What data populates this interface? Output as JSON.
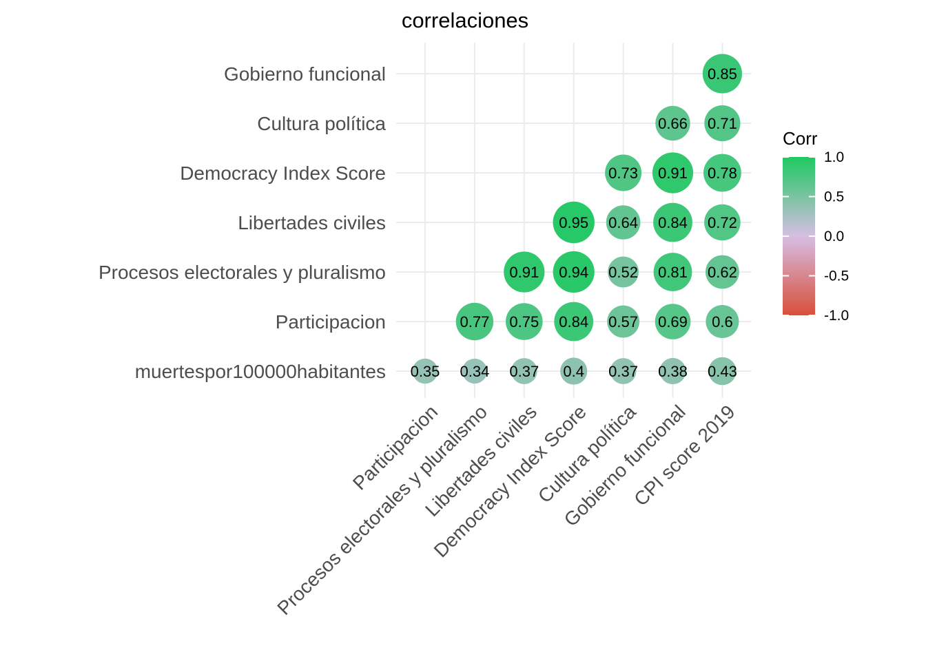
{
  "chart_data": {
    "type": "heatmap",
    "title": "correlaciones",
    "xlabel": "",
    "ylabel": "",
    "x_categories": [
      "Participacion",
      "Procesos electorales y pluralismo",
      "Libertades civiles",
      "Democracy Index Score",
      "Cultura política",
      "Gobierno funcional",
      "CPI score 2019"
    ],
    "y_categories": [
      "muertespor100000habitantes",
      "Participacion",
      "Procesos electorales y pluralismo",
      "Libertades civiles",
      "Democracy Index Score",
      "Cultura política",
      "Gobierno funcional"
    ],
    "cells": [
      {
        "x": "Participacion",
        "y": "muertespor100000habitantes",
        "value": 0.35,
        "label": "0.35"
      },
      {
        "x": "Procesos electorales y pluralismo",
        "y": "muertespor100000habitantes",
        "value": 0.34,
        "label": "0.34"
      },
      {
        "x": "Libertades civiles",
        "y": "muertespor100000habitantes",
        "value": 0.37,
        "label": "0.37"
      },
      {
        "x": "Democracy Index Score",
        "y": "muertespor100000habitantes",
        "value": 0.4,
        "label": "0.4"
      },
      {
        "x": "Cultura política",
        "y": "muertespor100000habitantes",
        "value": 0.37,
        "label": "0.37"
      },
      {
        "x": "Gobierno funcional",
        "y": "muertespor100000habitantes",
        "value": 0.38,
        "label": "0.38"
      },
      {
        "x": "CPI score 2019",
        "y": "muertespor100000habitantes",
        "value": 0.43,
        "label": "0.43"
      },
      {
        "x": "Procesos electorales y pluralismo",
        "y": "Participacion",
        "value": 0.77,
        "label": "0.77"
      },
      {
        "x": "Libertades civiles",
        "y": "Participacion",
        "value": 0.75,
        "label": "0.75"
      },
      {
        "x": "Democracy Index Score",
        "y": "Participacion",
        "value": 0.84,
        "label": "0.84"
      },
      {
        "x": "Cultura política",
        "y": "Participacion",
        "value": 0.57,
        "label": "0.57"
      },
      {
        "x": "Gobierno funcional",
        "y": "Participacion",
        "value": 0.69,
        "label": "0.69"
      },
      {
        "x": "CPI score 2019",
        "y": "Participacion",
        "value": 0.6,
        "label": "0.6"
      },
      {
        "x": "Libertades civiles",
        "y": "Procesos electorales y pluralismo",
        "value": 0.91,
        "label": "0.91"
      },
      {
        "x": "Democracy Index Score",
        "y": "Procesos electorales y pluralismo",
        "value": 0.94,
        "label": "0.94"
      },
      {
        "x": "Cultura política",
        "y": "Procesos electorales y pluralismo",
        "value": 0.52,
        "label": "0.52"
      },
      {
        "x": "Gobierno funcional",
        "y": "Procesos electorales y pluralismo",
        "value": 0.81,
        "label": "0.81"
      },
      {
        "x": "CPI score 2019",
        "y": "Procesos electorales y pluralismo",
        "value": 0.62,
        "label": "0.62"
      },
      {
        "x": "Democracy Index Score",
        "y": "Libertades civiles",
        "value": 0.95,
        "label": "0.95"
      },
      {
        "x": "Cultura política",
        "y": "Libertades civiles",
        "value": 0.64,
        "label": "0.64"
      },
      {
        "x": "Gobierno funcional",
        "y": "Libertades civiles",
        "value": 0.84,
        "label": "0.84"
      },
      {
        "x": "CPI score 2019",
        "y": "Libertades civiles",
        "value": 0.72,
        "label": "0.72"
      },
      {
        "x": "Cultura política",
        "y": "Democracy Index Score",
        "value": 0.73,
        "label": "0.73"
      },
      {
        "x": "Gobierno funcional",
        "y": "Democracy Index Score",
        "value": 0.91,
        "label": "0.91"
      },
      {
        "x": "CPI score 2019",
        "y": "Democracy Index Score",
        "value": 0.78,
        "label": "0.78"
      },
      {
        "x": "Gobierno funcional",
        "y": "Cultura política",
        "value": 0.66,
        "label": "0.66"
      },
      {
        "x": "CPI score 2019",
        "y": "Cultura política",
        "value": 0.71,
        "label": "0.71"
      },
      {
        "x": "CPI score 2019",
        "y": "Gobierno funcional",
        "value": 0.85,
        "label": "0.85"
      }
    ],
    "legend": {
      "title": "Corr",
      "position": "right",
      "ticks": [
        "1.0",
        "0.5",
        "0.0",
        "-0.5",
        "-1.0"
      ],
      "tick_values": [
        1.0,
        0.5,
        0.0,
        -0.5,
        -1.0
      ],
      "range": [
        -1.0,
        1.0
      ]
    },
    "colors": {
      "high": "#1ec961",
      "mid": "#d6bee3",
      "low": "#d94e39"
    },
    "grid": true
  }
}
